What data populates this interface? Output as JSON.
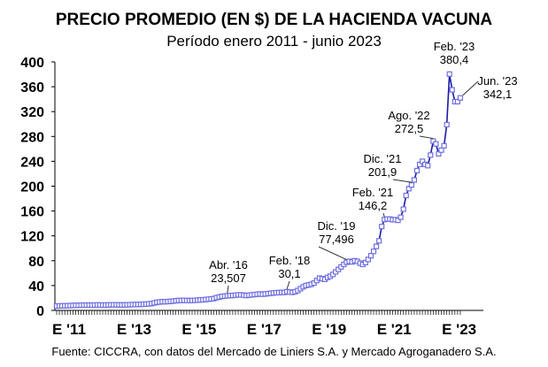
{
  "chart_data": {
    "type": "line",
    "title": "PRECIO PROMEDIO (EN $) DE LA HACIENDA VACUNA",
    "subtitle": "Período enero 2011 - junio 2023",
    "source": "Fuente: CICCRA, con datos del Mercado de Liniers S.A. y Mercado Agroganadero S.A.",
    "xlabel": "",
    "ylabel": "",
    "ylim": [
      0,
      400
    ],
    "yticks": [
      "0",
      "40",
      "80",
      "120",
      "160",
      "200",
      "240",
      "280",
      "320",
      "360",
      "400"
    ],
    "xticks": [
      {
        "label": "E '11",
        "month": 0
      },
      {
        "label": "E '13",
        "month": 24
      },
      {
        "label": "E '15",
        "month": 48
      },
      {
        "label": "E '17",
        "month": 72
      },
      {
        "label": "E '19",
        "month": 96
      },
      {
        "label": "E '21",
        "month": 120
      },
      {
        "label": "E '23",
        "month": 144
      }
    ],
    "series_color": "#1a1aa8",
    "marker_color": "#6f6fe0",
    "series": [
      {
        "name": "Precio promedio",
        "start": "2011-01",
        "values": [
          7,
          7.2,
          7.4,
          7.5,
          7.6,
          7.8,
          8,
          8.2,
          8.3,
          8.4,
          8.5,
          8.6,
          8.5,
          8.4,
          8.6,
          8.8,
          8.7,
          8.5,
          8.6,
          8.8,
          9,
          9.1,
          9,
          8.9,
          8.8,
          8.9,
          9,
          9.2,
          9.4,
          9.5,
          9.6,
          9.8,
          10,
          10.2,
          10.5,
          11,
          12,
          13,
          13.5,
          14,
          14,
          14.2,
          14.5,
          15,
          15.5,
          16,
          16,
          16.2,
          16,
          15.8,
          16,
          16.2,
          16.5,
          16.8,
          17,
          17.5,
          18,
          18.5,
          19,
          20.5,
          21.5,
          22.5,
          23,
          23.507,
          23.8,
          24,
          24.5,
          25,
          25,
          24.5,
          24,
          24.5,
          25,
          25.5,
          26,
          26.5,
          26,
          26.5,
          27,
          27.5,
          28,
          28.5,
          28.5,
          29,
          29,
          30.1,
          29.5,
          29,
          30,
          32,
          35,
          38,
          40,
          41,
          42,
          44,
          48,
          52,
          51,
          50,
          53,
          55,
          58,
          62,
          66,
          70,
          74,
          77.496,
          79,
          78,
          80,
          79,
          76,
          74,
          77,
          82,
          88,
          95,
          103,
          112,
          135,
          146.2,
          147,
          147,
          146,
          146,
          145,
          150,
          163,
          185,
          196,
          201.9,
          210,
          225,
          235,
          240,
          235,
          233,
          250,
          272.5,
          268,
          252,
          258,
          265,
          299,
          380.4,
          355,
          336,
          336,
          342.1
        ]
      }
    ],
    "annotations": [
      {
        "month": 63,
        "line1": "Abr. '16",
        "line2": "23,507"
      },
      {
        "month": 85,
        "line1": "Feb. '18",
        "line2": "30,1"
      },
      {
        "month": 107,
        "line1": "Dic. '19",
        "line2": "77,496"
      },
      {
        "month": 121,
        "line1": "Feb. '21",
        "line2": "146,2"
      },
      {
        "month": 131,
        "line1": "Dic. '21",
        "line2": "201,9"
      },
      {
        "month": 139,
        "line1": "Ago. '22",
        "line2": "272,5"
      },
      {
        "month": 145,
        "line1": "Feb. '23",
        "line2": "380,4"
      },
      {
        "month": 149,
        "line1": "Jun. '23",
        "line2": "342,1"
      }
    ]
  }
}
